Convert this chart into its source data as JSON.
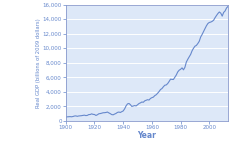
{
  "title": "",
  "xlabel": "Year",
  "ylabel": "Real GDP (billions of 2009 dollars)",
  "line_color": "#6688cc",
  "bg_color": "#dde8f8",
  "fig_bg_color": "#ffffff",
  "xlim": [
    1900,
    2013
  ],
  "ylim": [
    0,
    16000
  ],
  "yticks": [
    0,
    2000,
    4000,
    6000,
    8000,
    10000,
    12000,
    14000,
    16000
  ],
  "xticks": [
    1900,
    1920,
    1940,
    1960,
    1980,
    2000
  ],
  "grid_color": "#aabbdd",
  "spine_color": "#8899cc",
  "tick_color": "#6688cc",
  "label_color": "#6688cc",
  "years": [
    1900,
    1901,
    1902,
    1903,
    1904,
    1905,
    1906,
    1907,
    1908,
    1909,
    1910,
    1911,
    1912,
    1913,
    1914,
    1915,
    1916,
    1917,
    1918,
    1919,
    1920,
    1921,
    1922,
    1923,
    1924,
    1925,
    1926,
    1927,
    1928,
    1929,
    1930,
    1931,
    1932,
    1933,
    1934,
    1935,
    1936,
    1937,
    1938,
    1939,
    1940,
    1941,
    1942,
    1943,
    1944,
    1945,
    1946,
    1947,
    1948,
    1949,
    1950,
    1951,
    1952,
    1953,
    1954,
    1955,
    1956,
    1957,
    1958,
    1959,
    1960,
    1961,
    1962,
    1963,
    1964,
    1965,
    1966,
    1967,
    1968,
    1969,
    1970,
    1971,
    1972,
    1973,
    1974,
    1975,
    1976,
    1977,
    1978,
    1979,
    1980,
    1981,
    1982,
    1983,
    1984,
    1985,
    1986,
    1987,
    1988,
    1989,
    1990,
    1991,
    1992,
    1993,
    1994,
    1995,
    1996,
    1997,
    1998,
    1999,
    2000,
    2001,
    2002,
    2003,
    2004,
    2005,
    2006,
    2007,
    2008,
    2009,
    2010,
    2011,
    2012,
    2013
  ],
  "gdp": [
    530,
    558,
    575,
    590,
    565,
    605,
    670,
    690,
    630,
    680,
    700,
    720,
    760,
    790,
    730,
    760,
    870,
    880,
    970,
    900,
    880,
    750,
    840,
    980,
    1010,
    1060,
    1120,
    1130,
    1160,
    1220,
    1100,
    1000,
    870,
    840,
    940,
    1030,
    1170,
    1220,
    1160,
    1270,
    1370,
    1660,
    2070,
    2340,
    2400,
    2240,
    1990,
    2050,
    2110,
    2060,
    2220,
    2390,
    2480,
    2600,
    2560,
    2760,
    2840,
    2920,
    2870,
    3090,
    3200,
    3270,
    3480,
    3600,
    3810,
    4040,
    4320,
    4450,
    4700,
    4910,
    4950,
    5140,
    5430,
    5750,
    5710,
    5700,
    6010,
    6320,
    6740,
    6980,
    7100,
    7300,
    7030,
    7370,
    8100,
    8480,
    8820,
    9150,
    9650,
    10000,
    10280,
    10390,
    10650,
    10960,
    11550,
    11900,
    12300,
    12700,
    13090,
    13400,
    13550,
    13600,
    13700,
    13850,
    14200,
    14500,
    14780,
    14990,
    14830,
    14420,
    14930,
    15130,
    15540,
    15750
  ]
}
